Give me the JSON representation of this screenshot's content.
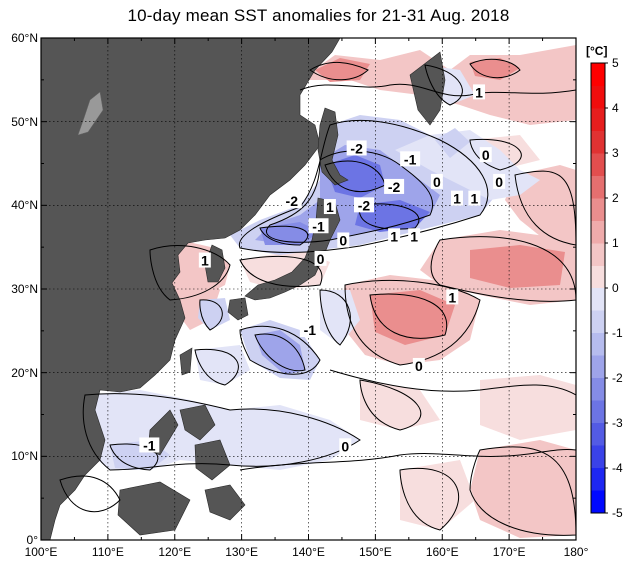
{
  "title": "10-day mean SST anomalies for 21-31 Aug. 2018",
  "colorbar": {
    "unit": "[°C]",
    "labels": [
      "5",
      "4",
      "3",
      "2",
      "1",
      "0",
      "-1",
      "-2",
      "-3",
      "-4",
      "-5"
    ],
    "colors": {
      "pos": [
        "#ffffff",
        "#f7dede",
        "#f3c6c6",
        "#efabab",
        "#ea8e8e",
        "#e56f6f",
        "#e24e4e",
        "#e03232",
        "#e61e1e",
        "#f00d0d",
        "#ff0000"
      ],
      "neg": [
        "#ffffff",
        "#e2e4f7",
        "#cdd1f2",
        "#b6bcee",
        "#9ea4ea",
        "#858ce6",
        "#6c74e4",
        "#535be4",
        "#3a42e8",
        "#1e27f2",
        "#0008ff"
      ]
    }
  },
  "axes": {
    "lat_labels": [
      "60°N",
      "50°N",
      "40°N",
      "30°N",
      "20°N",
      "10°N",
      "0°"
    ],
    "lon_labels": [
      "100°E",
      "110°E",
      "120°E",
      "130°E",
      "140°E",
      "150°E",
      "160°E",
      "170°E",
      "180°"
    ]
  },
  "contour_labels": [
    {
      "text": "1",
      "lon": 165.5,
      "lat": 53.5
    },
    {
      "text": "-2",
      "lon": 147.2,
      "lat": 46.8
    },
    {
      "text": "-1",
      "lon": 155.2,
      "lat": 45.5
    },
    {
      "text": "0",
      "lon": 166.5,
      "lat": 46.0
    },
    {
      "text": "0",
      "lon": 159.2,
      "lat": 42.8
    },
    {
      "text": "0",
      "lon": 168.5,
      "lat": 42.8
    },
    {
      "text": "-2",
      "lon": 152.8,
      "lat": 42.2
    },
    {
      "text": "1",
      "lon": 162.2,
      "lat": 40.8
    },
    {
      "text": "1",
      "lon": 164.8,
      "lat": 40.8
    },
    {
      "text": "-2",
      "lon": 137.5,
      "lat": 40.5
    },
    {
      "text": "-2",
      "lon": 148.3,
      "lat": 40.0
    },
    {
      "text": "1",
      "lon": 143.2,
      "lat": 39.8
    },
    {
      "text": "-1",
      "lon": 141.5,
      "lat": 37.5
    },
    {
      "text": "1",
      "lon": 152.8,
      "lat": 36.3
    },
    {
      "text": "1",
      "lon": 155.8,
      "lat": 36.3
    },
    {
      "text": "0",
      "lon": 145.2,
      "lat": 35.8
    },
    {
      "text": "0",
      "lon": 141.8,
      "lat": 33.6
    },
    {
      "text": "1",
      "lon": 124.5,
      "lat": 33.4
    },
    {
      "text": "1",
      "lon": 161.5,
      "lat": 29.0
    },
    {
      "text": "-1",
      "lon": 140.2,
      "lat": 25.1
    },
    {
      "text": "0",
      "lon": 156.5,
      "lat": 20.8
    },
    {
      "text": "0",
      "lon": 145.5,
      "lat": 11.2
    },
    {
      "text": "-1",
      "lon": 116.2,
      "lat": 11.3
    }
  ]
}
